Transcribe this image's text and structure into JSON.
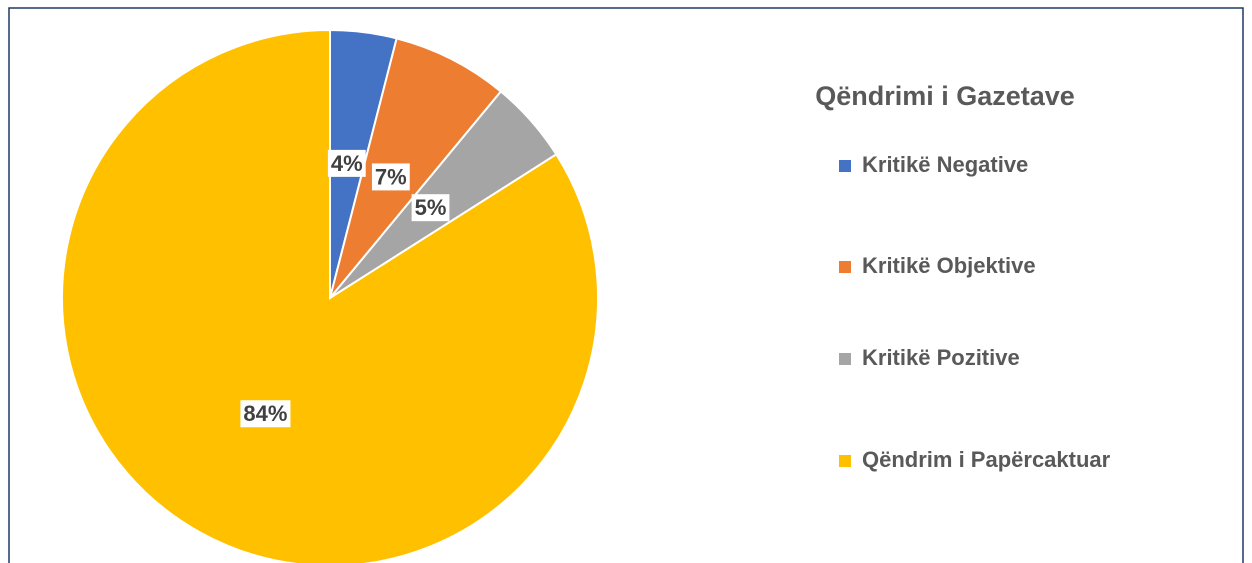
{
  "chart_data": {
    "type": "pie",
    "title": "Qëndrimi i Gazetave",
    "categories": [
      "Kritikë Negative",
      "Kritikë Objektive",
      "Kritikë Pozitive",
      "Qëndrim i Papërcaktuar"
    ],
    "values": [
      4,
      7,
      5,
      84
    ],
    "value_labels": [
      "4%",
      "7%",
      "5%",
      "84%"
    ],
    "colors": [
      "#4472c4",
      "#ed7d31",
      "#a5a5a5",
      "#ffc000"
    ],
    "legend": "right"
  }
}
